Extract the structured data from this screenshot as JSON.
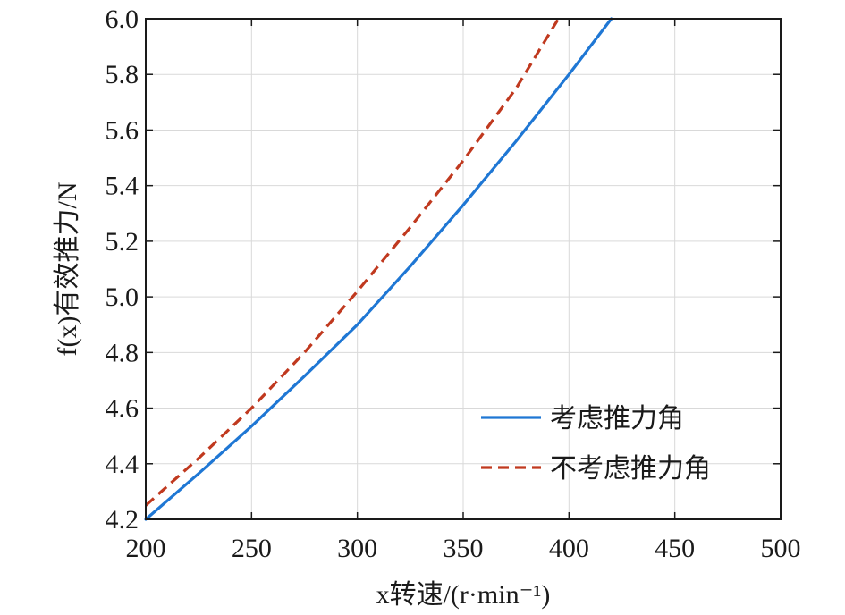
{
  "chart_data": {
    "type": "line",
    "xlabel": "x转速/(r·min⁻¹)",
    "ylabel": "f(x)有效推力/N",
    "xlim": [
      200,
      500
    ],
    "ylim": [
      4.2,
      6.0
    ],
    "xticks": [
      "200",
      "250",
      "300",
      "350",
      "400",
      "450",
      "500"
    ],
    "yticks": [
      "4.2",
      "4.4",
      "4.6",
      "4.8",
      "5.0",
      "5.2",
      "5.4",
      "5.6",
      "5.8",
      "6.0"
    ],
    "grid": true,
    "legend_position": "bottom-right",
    "series": [
      {
        "name": "考虑推力角",
        "color": "#1f77d4",
        "style": "solid",
        "x": [
          200,
          225,
          250,
          275,
          300,
          325,
          350,
          375,
          400,
          420
        ],
        "y": [
          4.2,
          4.365,
          4.535,
          4.715,
          4.9,
          5.11,
          5.33,
          5.56,
          5.8,
          6.0
        ]
      },
      {
        "name": "不考虑推力角",
        "color": "#c0391f",
        "style": "dashed",
        "x": [
          200,
          225,
          250,
          275,
          300,
          325,
          350,
          375,
          395
        ],
        "y": [
          4.25,
          4.42,
          4.6,
          4.8,
          5.02,
          5.25,
          5.49,
          5.75,
          6.0
        ]
      }
    ]
  }
}
